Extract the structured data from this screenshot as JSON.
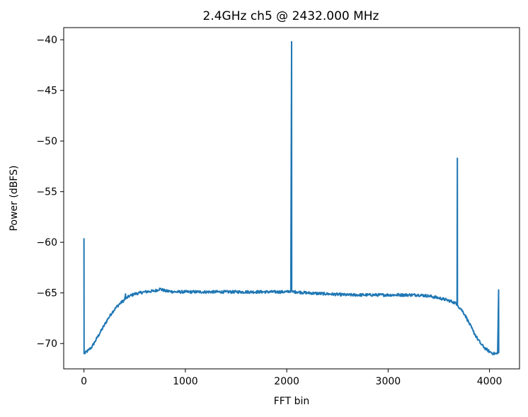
{
  "chart_data": {
    "type": "line",
    "title": "2.4GHz ch5 @ 2432.000 MHz",
    "xlabel": "FFT bin",
    "ylabel": "Power (dBFS)",
    "xlim": [
      -200,
      4296
    ],
    "ylim": [
      -72.5,
      -38.8
    ],
    "xticks": [
      0,
      1000,
      2000,
      3000,
      4000
    ],
    "yticks": [
      -40,
      -45,
      -50,
      -55,
      -60,
      -65,
      -70
    ],
    "xtick_labels": [
      "0",
      "1000",
      "2000",
      "3000",
      "4000"
    ],
    "ytick_labels": [
      "−40",
      "−45",
      "−50",
      "−55",
      "−60",
      "−65",
      "−70"
    ],
    "grid": false,
    "series": [
      {
        "color": "#1f77b4",
        "x": [
          0,
          1,
          2,
          40,
          80,
          120,
          160,
          200,
          240,
          280,
          320,
          360,
          400,
          410,
          411,
          420,
          450,
          500,
          550,
          600,
          700,
          750,
          800,
          900,
          1000,
          1200,
          1400,
          1600,
          1800,
          2000,
          2040,
          2048,
          2049,
          2056,
          2100,
          2200,
          2400,
          2600,
          2800,
          3000,
          3200,
          3300,
          3400,
          3500,
          3580,
          3640,
          3680,
          3683,
          3684,
          3690,
          3720,
          3760,
          3800,
          3840,
          3880,
          3920,
          3960,
          4000,
          4040,
          4080,
          4090,
          4091,
          4095
        ],
        "y": [
          -59.6,
          -71.0,
          -71.0,
          -70.7,
          -70.3,
          -69.6,
          -68.9,
          -68.2,
          -67.5,
          -66.9,
          -66.4,
          -66.0,
          -65.7,
          -65.1,
          -65.6,
          -65.5,
          -65.3,
          -65.1,
          -65.0,
          -64.9,
          -64.8,
          -64.6,
          -64.8,
          -64.9,
          -64.9,
          -64.9,
          -64.9,
          -64.9,
          -64.9,
          -64.9,
          -64.8,
          -40.2,
          -64.8,
          -64.9,
          -64.9,
          -65.0,
          -65.1,
          -65.2,
          -65.2,
          -65.2,
          -65.2,
          -65.2,
          -65.3,
          -65.5,
          -65.7,
          -65.9,
          -66.1,
          -51.7,
          -66.2,
          -66.3,
          -66.6,
          -67.2,
          -68.0,
          -68.8,
          -69.5,
          -70.1,
          -70.5,
          -70.8,
          -71.0,
          -71.0,
          -64.7,
          -70.9,
          -70.9
        ]
      }
    ]
  }
}
